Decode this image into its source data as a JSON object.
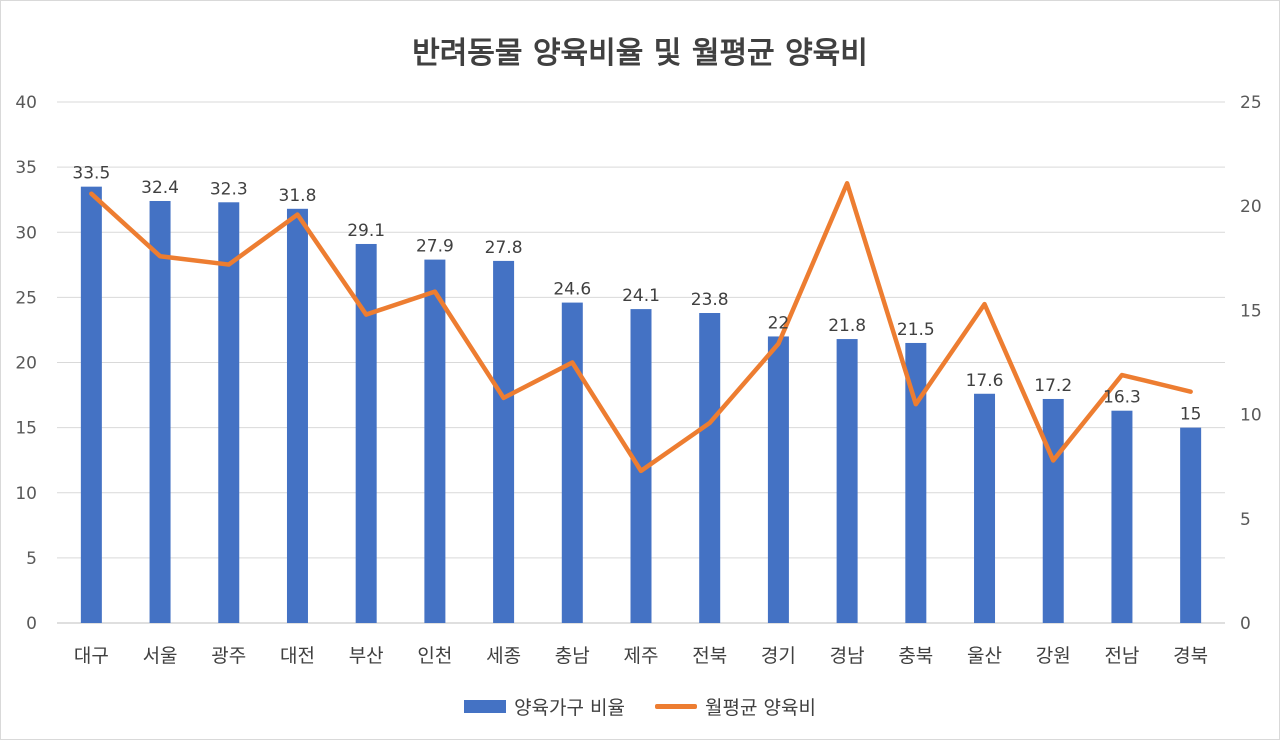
{
  "chart_data": {
    "type": "bar",
    "title": "반려동물 양육비율 및 월평균 양육비",
    "categories": [
      "대구",
      "서울",
      "광주",
      "대전",
      "부산",
      "인천",
      "세종",
      "충남",
      "제주",
      "전북",
      "경기",
      "경남",
      "충북",
      "울산",
      "강원",
      "전남",
      "경북"
    ],
    "series": [
      {
        "name": "양육가구 비율",
        "type": "bar",
        "axis": "left",
        "color": "#4472c4",
        "values": [
          33.5,
          32.4,
          32.3,
          31.8,
          29.1,
          27.9,
          27.8,
          24.6,
          24.1,
          23.8,
          22,
          21.8,
          21.5,
          17.6,
          17.2,
          16.3,
          15
        ],
        "labels": [
          "33.5",
          "32.4",
          "32.3",
          "31.8",
          "29.1",
          "27.9",
          "27.8",
          "24.6",
          "24.1",
          "23.8",
          "22",
          "21.8",
          "21.5",
          "17.6",
          "17.2",
          "16.3",
          "15"
        ]
      },
      {
        "name": "월평균 양육비",
        "type": "line",
        "axis": "right",
        "color": "#ed7d31",
        "values": [
          20.6,
          17.6,
          17.2,
          19.6,
          14.8,
          15.9,
          10.8,
          12.5,
          7.3,
          9.6,
          13.4,
          21.1,
          10.5,
          15.3,
          7.8,
          11.9,
          11.1
        ]
      }
    ],
    "ylim_left": [
      0,
      40
    ],
    "yticks_left": [
      "0",
      "5",
      "10",
      "15",
      "20",
      "25",
      "30",
      "35",
      "40"
    ],
    "ylim_right": [
      0,
      25
    ],
    "yticks_right": [
      "0",
      "5",
      "10",
      "15",
      "20",
      "25"
    ],
    "grid": true,
    "legend_position": "bottom"
  }
}
